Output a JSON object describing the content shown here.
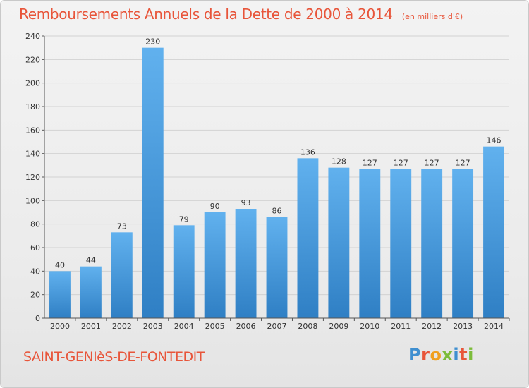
{
  "header": {
    "title": "Remboursements Annuels de la Dette de 2000 à 2014",
    "unit": "(en milliers d'€)"
  },
  "footer": {
    "commune": "SAINT-GENIèS-DE-FONTEDIT",
    "logo_letters": [
      {
        "char": "P",
        "color": "#3f8fd0"
      },
      {
        "char": "r",
        "color": "#e8553a"
      },
      {
        "char": "o",
        "color": "#f0a020"
      },
      {
        "char": "x",
        "color": "#7cbc3a"
      },
      {
        "char": "i",
        "color": "#3f8fd0"
      },
      {
        "char": "t",
        "color": "#e8553a"
      },
      {
        "char": "i",
        "color": "#7cbc3a"
      }
    ]
  },
  "colors": {
    "bar_light": "#61b1ee",
    "bar_dark": "#2f7fc4",
    "grid": "#d2d2d2",
    "axis": "#555555",
    "accent": "#e8553a"
  },
  "chart_data": {
    "type": "bar",
    "title": "Remboursements Annuels de la Dette de 2000 à 2014",
    "subtitle": "(en milliers d'€)",
    "categories": [
      "2000",
      "2001",
      "2002",
      "2003",
      "2004",
      "2005",
      "2006",
      "2007",
      "2008",
      "2009",
      "2010",
      "2011",
      "2012",
      "2013",
      "2014"
    ],
    "values": [
      40,
      44,
      73,
      230,
      79,
      90,
      93,
      86,
      136,
      128,
      127,
      127,
      127,
      127,
      146
    ],
    "ylim": [
      0,
      240
    ],
    "yticks": [
      0,
      20,
      40,
      60,
      80,
      100,
      120,
      140,
      160,
      180,
      200,
      220,
      240
    ],
    "grid": true,
    "legend": "none"
  }
}
